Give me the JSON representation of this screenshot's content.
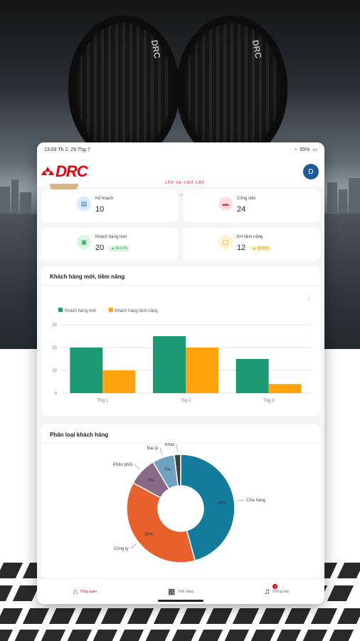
{
  "status_bar": {
    "time_date": "13:09 Th 2, 29 Thg 7",
    "battery": "65%"
  },
  "header": {
    "logo_text": "DRC",
    "subtitle": "LỐP XE CAO CẤP",
    "avatar_initial": "D"
  },
  "kpis": [
    {
      "label": "Kế hoạch",
      "value": "10",
      "icon": "plan-icon",
      "icon_bg": "#dbe9fb",
      "icon_fg": "#2b6fc7",
      "badge": ""
    },
    {
      "label": "Công việc",
      "value": "24",
      "icon": "task-icon",
      "icon_bg": "#fde0e0",
      "icon_fg": "#d9453f",
      "badge": ""
    },
    {
      "label": "Khách hàng mới",
      "value": "20",
      "icon": "new-customer-icon",
      "icon_bg": "#dcf5e3",
      "icon_fg": "#2ea85a",
      "badge": "▲ 66.67%",
      "badge_bg": "#d9f4e0",
      "badge_fg": "#2ea85a"
    },
    {
      "label": "KH tiềm năng",
      "value": "12",
      "icon": "potential-customer-icon",
      "icon_bg": "#fdf4cf",
      "icon_fg": "#d4a20c",
      "badge": "▲ 20.00%",
      "badge_bg": "#fbf0c4",
      "badge_fg": "#c99a07"
    }
  ],
  "colors": {
    "brand": "#e3000f",
    "series_new": "#1b9a74",
    "series_potential": "#ffa40e",
    "pie": [
      "#137b9c",
      "#e8612c",
      "#8a6b87",
      "#6fa2c1",
      "#3f3f3f"
    ]
  },
  "chart_data": [
    {
      "type": "bar",
      "title": "Khách hàng mới, tiềm năng",
      "categories": [
        "Thg 1",
        "Thg 2",
        "Thg 3"
      ],
      "series": [
        {
          "name": "Khách hàng mới",
          "values": [
            20,
            25,
            15
          ]
        },
        {
          "name": "Khách hàng tiềm năng",
          "values": [
            10,
            20,
            4
          ]
        }
      ],
      "y_ticks": [
        0,
        10,
        20,
        30
      ],
      "ylim": [
        0,
        30
      ],
      "legend": "top-left",
      "grid": true
    },
    {
      "type": "pie",
      "title": "Phân loại khách hàng",
      "labels": [
        "Cửa hàng",
        "Công ty",
        "Phân phối",
        "Đại lý",
        "Khác"
      ],
      "values": [
        48,
        39,
        9,
        7,
        2
      ],
      "value_labels": [
        "48%",
        "39%",
        "9%",
        "7%",
        ""
      ],
      "donut": true
    }
  ],
  "bottom_nav": [
    {
      "label": "Tổng quan",
      "icon": "home-icon",
      "active": true,
      "badge": ""
    },
    {
      "label": "Tính năng",
      "icon": "grid-icon",
      "active": false,
      "badge": ""
    },
    {
      "label": "Thông báo",
      "icon": "bell-icon",
      "active": false,
      "badge": "9"
    }
  ]
}
